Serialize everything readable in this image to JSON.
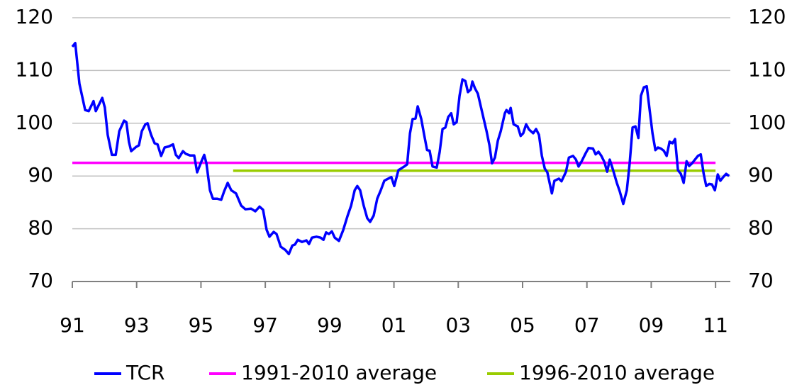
{
  "chart_data": {
    "type": "line",
    "xlim": [
      1991,
      2011.46
    ],
    "xticks": [
      {
        "value": 1991,
        "label": "91"
      },
      {
        "value": 1993,
        "label": "93"
      },
      {
        "value": 1995,
        "label": "95"
      },
      {
        "value": 1997,
        "label": "97"
      },
      {
        "value": 1999,
        "label": "99"
      },
      {
        "value": 2001,
        "label": "01"
      },
      {
        "value": 2003,
        "label": "03"
      },
      {
        "value": 2005,
        "label": "05"
      },
      {
        "value": 2007,
        "label": "07"
      },
      {
        "value": 2009,
        "label": "09"
      },
      {
        "value": 2011,
        "label": "11"
      }
    ],
    "ylim": [
      70,
      120
    ],
    "yticks": [
      70,
      80,
      90,
      100,
      110,
      120
    ],
    "y2lim": [
      70,
      120
    ],
    "y2ticks": [
      70,
      80,
      90,
      100,
      110,
      120
    ],
    "grid": true,
    "legend": "bottom",
    "series": [
      {
        "name": "TCR",
        "color": "#0000ff",
        "x": [
          1991.0,
          1991.09,
          1991.22,
          1991.4,
          1991.51,
          1991.66,
          1991.73,
          1991.93,
          1992.01,
          1992.1,
          1992.23,
          1992.35,
          1992.46,
          1992.61,
          1992.68,
          1992.76,
          1992.83,
          1992.98,
          1993.07,
          1993.16,
          1993.27,
          1993.34,
          1993.45,
          1993.56,
          1993.65,
          1993.76,
          1993.87,
          1994.0,
          1994.13,
          1994.22,
          1994.31,
          1994.44,
          1994.53,
          1994.66,
          1994.79,
          1994.88,
          1995.01,
          1995.1,
          1995.17,
          1995.28,
          1995.37,
          1995.5,
          1995.63,
          1995.72,
          1995.83,
          1995.94,
          1996.09,
          1996.25,
          1996.38,
          1996.56,
          1996.69,
          1996.82,
          1996.93,
          1997.04,
          1997.13,
          1997.26,
          1997.35,
          1997.48,
          1997.62,
          1997.73,
          1997.84,
          1997.92,
          1998.01,
          1998.14,
          1998.28,
          1998.36,
          1998.45,
          1998.59,
          1998.72,
          1998.81,
          1998.89,
          1998.98,
          1999.07,
          1999.16,
          1999.29,
          1999.42,
          1999.56,
          1999.67,
          1999.78,
          1999.86,
          1999.95,
          2000.06,
          2000.17,
          2000.26,
          2000.37,
          2000.48,
          2000.59,
          2000.7,
          2000.79,
          2000.92,
          2001.01,
          2001.14,
          2001.32,
          2001.41,
          2001.5,
          2001.58,
          2001.67,
          2001.74,
          2001.85,
          2001.94,
          2002.03,
          2002.11,
          2002.2,
          2002.33,
          2002.42,
          2002.51,
          2002.6,
          2002.69,
          2002.78,
          2002.86,
          2002.95,
          2003.04,
          2003.13,
          2003.22,
          2003.3,
          2003.39,
          2003.44,
          2003.52,
          2003.61,
          2003.75,
          2003.88,
          2003.97,
          2004.05,
          2004.14,
          2004.23,
          2004.32,
          2004.45,
          2004.5,
          2004.58,
          2004.63,
          2004.72,
          2004.85,
          2004.94,
          2005.02,
          2005.11,
          2005.2,
          2005.33,
          2005.42,
          2005.51,
          2005.6,
          2005.69,
          2005.77,
          2005.91,
          2005.99,
          2006.13,
          2006.21,
          2006.35,
          2006.44,
          2006.57,
          2006.66,
          2006.74,
          2006.83,
          2006.96,
          2007.05,
          2007.19,
          2007.27,
          2007.36,
          2007.45,
          2007.54,
          2007.63,
          2007.71,
          2007.8,
          2007.93,
          2008.02,
          2008.13,
          2008.24,
          2008.33,
          2008.42,
          2008.51,
          2008.6,
          2008.68,
          2008.77,
          2008.86,
          2008.95,
          2009.04,
          2009.13,
          2009.21,
          2009.3,
          2009.39,
          2009.48,
          2009.57,
          2009.66,
          2009.74,
          2009.83,
          2009.92,
          2010.01,
          2010.1,
          2010.18,
          2010.27,
          2010.36,
          2010.45,
          2010.54,
          2010.63,
          2010.71,
          2010.8,
          2010.89,
          2010.98,
          2011.07,
          2011.15,
          2011.24,
          2011.33,
          2011.42
        ],
        "values": [
          114.5,
          115.2,
          107.5,
          102.5,
          102.3,
          104.2,
          102.3,
          104.8,
          103,
          97.8,
          94,
          94,
          98.5,
          100.5,
          100.2,
          96.5,
          94.7,
          95.5,
          95.8,
          98.5,
          99.8,
          100,
          97.8,
          96.2,
          96,
          93.8,
          95.4,
          95.6,
          96,
          94,
          93.4,
          94.7,
          94.2,
          93.9,
          93.9,
          90.7,
          92.7,
          94,
          92.4,
          87.3,
          85.7,
          85.7,
          85.5,
          87.1,
          88.7,
          87.3,
          86.7,
          84.4,
          83.7,
          83.8,
          83.3,
          84.2,
          83.6,
          79.8,
          78.5,
          79.4,
          79,
          76.6,
          76,
          75.2,
          76.8,
          77,
          77.9,
          77.5,
          77.8,
          77.1,
          78.3,
          78.5,
          78.3,
          77.9,
          79.3,
          79,
          79.5,
          78.3,
          77.7,
          79.7,
          82.5,
          84.4,
          87.3,
          88.1,
          87.3,
          84.4,
          82,
          81.3,
          82.5,
          85.7,
          87.3,
          89.1,
          89.4,
          89.8,
          88.1,
          91.1,
          91.8,
          92.2,
          98.1,
          100.8,
          100.9,
          103.2,
          100.8,
          97.8,
          94.9,
          94.8,
          91.8,
          91.6,
          94.5,
          98.9,
          99.2,
          101.2,
          101.9,
          99.8,
          100.2,
          105.2,
          108.3,
          108,
          105.9,
          106.4,
          107.9,
          106.6,
          105.6,
          101.9,
          98.5,
          95.8,
          92.4,
          93.5,
          96.7,
          98.5,
          101.9,
          102.5,
          101.9,
          102.9,
          99.8,
          99.4,
          97.6,
          98.1,
          99.8,
          98.8,
          98.1,
          98.9,
          97.8,
          93.8,
          91.4,
          90.7,
          86.7,
          89.1,
          89.5,
          89,
          90.8,
          93.5,
          93.8,
          93.1,
          91.8,
          92.7,
          94.3,
          95.3,
          95.2,
          94.1,
          94.6,
          93.8,
          92.7,
          90.8,
          93.1,
          91.4,
          88.7,
          87.1,
          84.7,
          87.3,
          92.4,
          99.2,
          99.4,
          97.2,
          105.2,
          106.8,
          107,
          102.5,
          98.1,
          94.9,
          95.4,
          95.2,
          94.8,
          93.8,
          96.5,
          96.2,
          97,
          91.1,
          90.4,
          88.7,
          92.8,
          91.9,
          92.4,
          93.1,
          93.8,
          94.1,
          90.4,
          88.1,
          88.5,
          88.4,
          87.3,
          90.3,
          89.1,
          89.8,
          90.4,
          90
        ]
      },
      {
        "name": "1991-2010 average",
        "color": "#ff00ff",
        "x": [
          1991,
          2011
        ],
        "values": [
          92.5,
          92.5
        ]
      },
      {
        "name": "1996-2010 average",
        "color": "#99cc00",
        "x": [
          1996,
          2011
        ],
        "values": [
          91,
          91
        ]
      }
    ]
  }
}
